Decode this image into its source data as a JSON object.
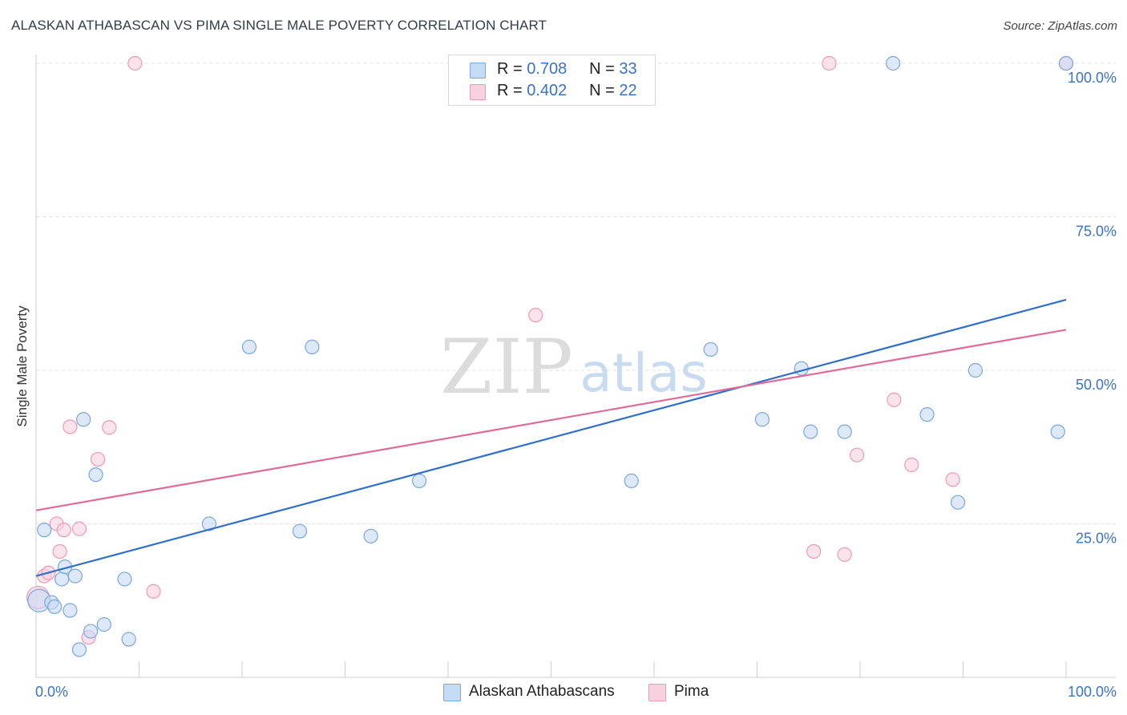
{
  "chart_data": {
    "type": "scatter",
    "title": "ALASKAN ATHABASCAN VS PIMA SINGLE MALE POVERTY CORRELATION CHART",
    "source": "Source: ZipAtlas.com",
    "ylabel": "Single Male Poverty",
    "xlabel": "",
    "xlim": [
      0,
      100
    ],
    "ylim": [
      0,
      100
    ],
    "x_tick_labels": [
      "0.0%",
      "100.0%"
    ],
    "y_tick_labels": [
      "25.0%",
      "50.0%",
      "75.0%",
      "100.0%"
    ],
    "watermark": {
      "zip": "ZIP",
      "atlas": "atlas"
    },
    "legend": {
      "r_label": "R =",
      "n_label": "N =",
      "items": [
        {
          "name": "Alaskan Athabascans",
          "r": "0.708",
          "n": "33"
        },
        {
          "name": "Pima",
          "r": "0.402",
          "n": "22"
        }
      ]
    },
    "series": [
      {
        "name": "Alaskan Athabascans",
        "color": "#7aa7e0",
        "fill": "#c6dbf5",
        "line_color": "#2f6fcb",
        "trend": {
          "x": [
            0,
            100
          ],
          "y": [
            16.5,
            61.5
          ]
        },
        "points": [
          {
            "x": 0.3,
            "y": 12.5
          },
          {
            "x": 0.8,
            "y": 24.0
          },
          {
            "x": 1.5,
            "y": 12.2
          },
          {
            "x": 1.8,
            "y": 11.5
          },
          {
            "x": 2.5,
            "y": 16.0
          },
          {
            "x": 2.8,
            "y": 18.0
          },
          {
            "x": 3.3,
            "y": 10.9
          },
          {
            "x": 3.8,
            "y": 16.5
          },
          {
            "x": 4.2,
            "y": 4.5
          },
          {
            "x": 4.6,
            "y": 42.0
          },
          {
            "x": 5.3,
            "y": 7.5
          },
          {
            "x": 5.8,
            "y": 33.0
          },
          {
            "x": 6.6,
            "y": 8.6
          },
          {
            "x": 8.6,
            "y": 16.0
          },
          {
            "x": 9.0,
            "y": 6.2
          },
          {
            "x": 16.8,
            "y": 25.0
          },
          {
            "x": 20.7,
            "y": 53.8
          },
          {
            "x": 25.6,
            "y": 23.8
          },
          {
            "x": 26.8,
            "y": 53.8
          },
          {
            "x": 32.5,
            "y": 23.0
          },
          {
            "x": 37.2,
            "y": 32.0
          },
          {
            "x": 57.8,
            "y": 32.0
          },
          {
            "x": 65.5,
            "y": 53.4
          },
          {
            "x": 70.5,
            "y": 42.0
          },
          {
            "x": 74.3,
            "y": 50.3
          },
          {
            "x": 75.2,
            "y": 40.0
          },
          {
            "x": 78.5,
            "y": 40.0
          },
          {
            "x": 83.2,
            "y": 100.0
          },
          {
            "x": 86.5,
            "y": 42.8
          },
          {
            "x": 89.5,
            "y": 28.5
          },
          {
            "x": 91.2,
            "y": 50.0
          },
          {
            "x": 99.2,
            "y": 40.0
          },
          {
            "x": 100.0,
            "y": 100.0
          }
        ]
      },
      {
        "name": "Pima",
        "color": "#ee9ab5",
        "fill": "#f9d0dd",
        "line_color": "#e06b98",
        "trend": {
          "x": [
            0,
            100
          ],
          "y": [
            27.2,
            56.6
          ]
        },
        "points": [
          {
            "x": 0.2,
            "y": 13.0
          },
          {
            "x": 0.8,
            "y": 16.5
          },
          {
            "x": 1.2,
            "y": 17.0
          },
          {
            "x": 2.0,
            "y": 25.0
          },
          {
            "x": 2.3,
            "y": 20.5
          },
          {
            "x": 2.7,
            "y": 24.0
          },
          {
            "x": 3.3,
            "y": 40.8
          },
          {
            "x": 4.2,
            "y": 24.2
          },
          {
            "x": 5.1,
            "y": 6.5
          },
          {
            "x": 6.0,
            "y": 35.5
          },
          {
            "x": 7.1,
            "y": 40.7
          },
          {
            "x": 9.6,
            "y": 100.0
          },
          {
            "x": 11.4,
            "y": 14.0
          },
          {
            "x": 48.5,
            "y": 59.0
          },
          {
            "x": 75.5,
            "y": 20.5
          },
          {
            "x": 77.0,
            "y": 100.0
          },
          {
            "x": 78.5,
            "y": 20.0
          },
          {
            "x": 79.7,
            "y": 36.2
          },
          {
            "x": 83.3,
            "y": 45.2
          },
          {
            "x": 85.0,
            "y": 34.6
          },
          {
            "x": 89.0,
            "y": 32.2
          },
          {
            "x": 100.0,
            "y": 100.0
          }
        ]
      }
    ]
  }
}
